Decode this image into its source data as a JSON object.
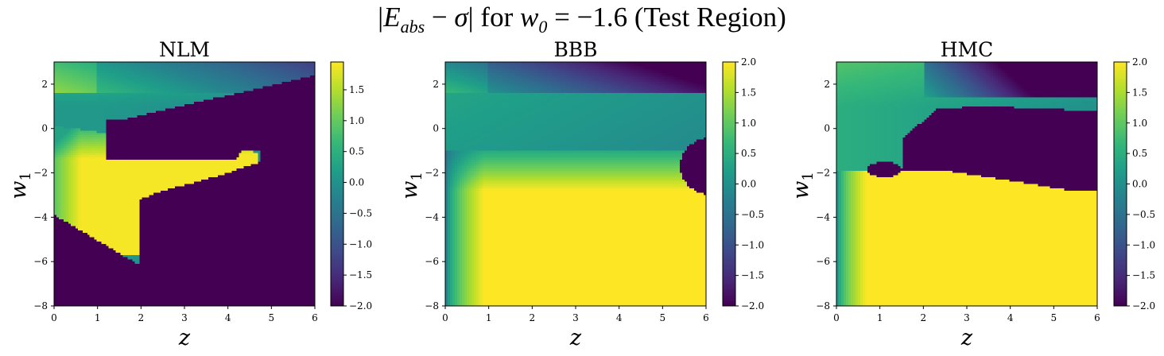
{
  "figure": {
    "title_math": {
      "abs_open": "|",
      "e_symbol": "E",
      "e_sub": "abs",
      "minus": " − ",
      "sigma": "σ",
      "abs_close": "|",
      "for_text": " for ",
      "w_symbol": "w",
      "w_sub": "0",
      "equals_value": " = −1.6 ",
      "region_text": "(Test Region)"
    }
  },
  "colors": {
    "viridis_low": "#440154",
    "viridis_mid": "#21918c",
    "viridis_high": "#fde725",
    "axes": "#000000",
    "background": "#ffffff"
  },
  "chart_data": [
    {
      "type": "heatmap",
      "title": "NLM",
      "xlabel": "z",
      "ylabel": "w1",
      "ylabel_symbol": "w",
      "ylabel_sub": "1",
      "xlim": [
        0,
        6
      ],
      "ylim": [
        -8,
        3
      ],
      "xticks": [
        "0",
        "1",
        "2",
        "3",
        "4",
        "5",
        "6"
      ],
      "xtick_values": [
        0,
        1,
        2,
        3,
        4,
        5,
        6
      ],
      "yticks": [
        "2",
        "0",
        "−2",
        "−4",
        "−6",
        "−8"
      ],
      "ytick_values": [
        2,
        0,
        -2,
        -4,
        -6,
        -8
      ],
      "colorbar": {
        "vmin": -2.0,
        "vmax": 1.95,
        "ticks": [
          "1.5",
          "1.0",
          "0.5",
          "0.0",
          "−0.5",
          "−1.0",
          "−1.5",
          "−2.0"
        ],
        "tick_values": [
          1.5,
          1.0,
          0.5,
          0.0,
          -0.5,
          -1.0,
          -1.5,
          -2.0
        ]
      },
      "grid": false
    },
    {
      "type": "heatmap",
      "title": "BBB",
      "xlabel": "z",
      "ylabel": "w1",
      "ylabel_symbol": "w",
      "ylabel_sub": "1",
      "xlim": [
        0,
        6
      ],
      "ylim": [
        -8,
        3
      ],
      "xticks": [
        "0",
        "1",
        "2",
        "3",
        "4",
        "5",
        "6"
      ],
      "xtick_values": [
        0,
        1,
        2,
        3,
        4,
        5,
        6
      ],
      "yticks": [
        "2",
        "0",
        "−2",
        "−4",
        "−6",
        "−8"
      ],
      "ytick_values": [
        2,
        0,
        -2,
        -4,
        -6,
        -8
      ],
      "colorbar": {
        "vmin": -2.0,
        "vmax": 2.0,
        "ticks": [
          "2.0",
          "1.5",
          "1.0",
          "0.5",
          "0.0",
          "−0.5",
          "−1.0",
          "−1.5",
          "−2.0"
        ],
        "tick_values": [
          2.0,
          1.5,
          1.0,
          0.5,
          0.0,
          -0.5,
          -1.0,
          -1.5,
          -2.0
        ]
      },
      "grid": false
    },
    {
      "type": "heatmap",
      "title": "HMC",
      "xlabel": "z",
      "ylabel": "w1",
      "ylabel_symbol": "w",
      "ylabel_sub": "1",
      "xlim": [
        0,
        6
      ],
      "ylim": [
        -8,
        3
      ],
      "xticks": [
        "0",
        "1",
        "2",
        "3",
        "4",
        "5",
        "6"
      ],
      "xtick_values": [
        0,
        1,
        2,
        3,
        4,
        5,
        6
      ],
      "yticks": [
        "2",
        "0",
        "−2",
        "−4",
        "−6",
        "−8"
      ],
      "ytick_values": [
        2,
        0,
        -2,
        -4,
        -6,
        -8
      ],
      "colorbar": {
        "vmin": -2.0,
        "vmax": 2.0,
        "ticks": [
          "2.0",
          "1.5",
          "1.0",
          "0.5",
          "0.0",
          "−0.5",
          "−1.0",
          "−1.5",
          "−2.0"
        ],
        "tick_values": [
          2.0,
          1.5,
          1.0,
          0.5,
          0.0,
          -0.5,
          -1.0,
          -1.5,
          -2.0
        ]
      },
      "grid": false
    }
  ]
}
